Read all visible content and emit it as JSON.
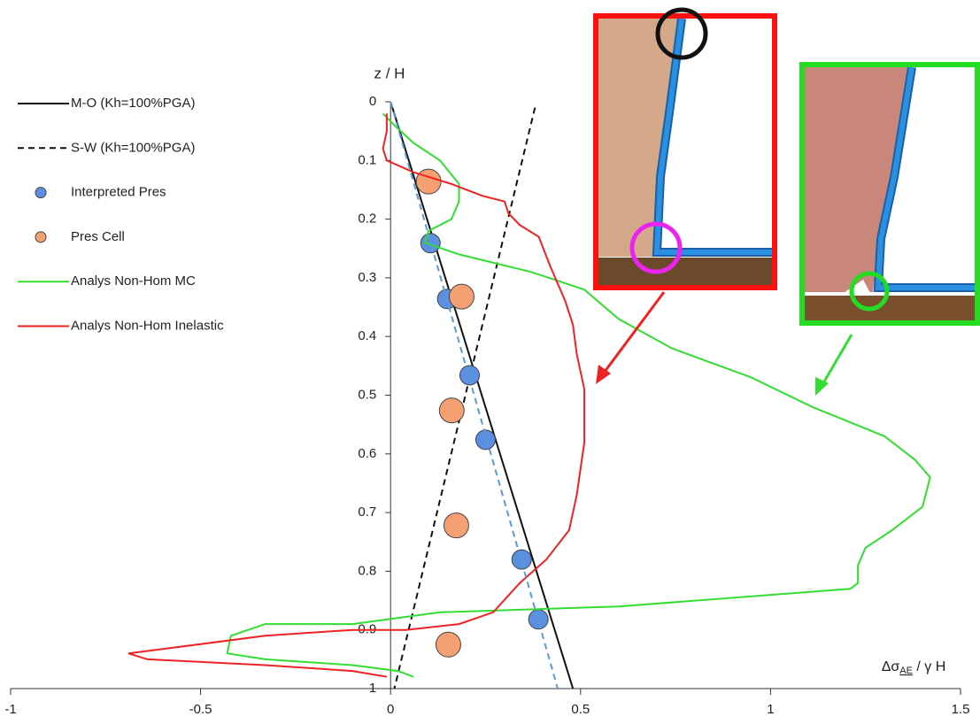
{
  "chart_data": {
    "type": "line",
    "ylabel": "z / H",
    "xlabel": {
      "main": "Δσ",
      "sub": "AE",
      "rest": " / γ H"
    },
    "xlim": [
      -1,
      1.5
    ],
    "xticks": [
      -1,
      -0.5,
      0,
      0.5,
      1,
      1.5
    ],
    "ylim": [
      0,
      1
    ],
    "y_inverted": true,
    "yticks": [
      0,
      0.1,
      0.2,
      0.3,
      0.4,
      0.5,
      0.6,
      0.7,
      0.8,
      0.9,
      1
    ],
    "series": [
      {
        "name": "M-O (Kh=100%PGA)",
        "color": "#111111",
        "mode": "line",
        "dashed": false,
        "x": [
          0,
          0.48
        ],
        "y": [
          0,
          1
        ]
      },
      {
        "name": "S-W (Kh=100%PGA)",
        "color": "#111111",
        "mode": "line",
        "dashed": true,
        "x": [
          0.38,
          0.01
        ],
        "y": [
          0.01,
          1
        ]
      },
      {
        "name": "Interpreted Pres",
        "color": "#5b8fe0",
        "mode": "markers",
        "x": [
          0.105,
          0.149,
          0.208,
          0.25,
          0.345,
          0.389
        ],
        "y": [
          0.241,
          0.336,
          0.466,
          0.576,
          0.78,
          0.882
        ]
      },
      {
        "name": "Pres Cell",
        "color": "#f4a072",
        "mode": "markers",
        "x": [
          0.1,
          0.187,
          0.161,
          0.173,
          0.152
        ],
        "y": [
          0.136,
          0.332,
          0.526,
          0.722,
          0.925
        ]
      },
      {
        "name": "Analys Non-Hom MC",
        "color": "#33dd33",
        "mode": "line",
        "dashed": false,
        "x": [
          -0.02,
          0.01,
          0.06,
          0.13,
          0.18,
          0.18,
          0.16,
          0.1,
          0.09,
          0.18,
          0.37,
          0.51,
          0.6,
          0.74,
          0.95,
          1.11,
          1.3,
          1.38,
          1.42,
          1.4,
          1.32,
          1.25,
          1.23,
          1.23,
          1.21,
          0.6,
          0.13,
          -0.1,
          -0.33,
          -0.42,
          -0.43,
          -0.33,
          -0.1,
          0.02,
          0.06
        ],
        "y": [
          0.02,
          0.04,
          0.07,
          0.1,
          0.14,
          0.17,
          0.2,
          0.22,
          0.24,
          0.26,
          0.29,
          0.32,
          0.37,
          0.42,
          0.47,
          0.52,
          0.57,
          0.61,
          0.64,
          0.69,
          0.73,
          0.76,
          0.79,
          0.82,
          0.83,
          0.86,
          0.87,
          0.89,
          0.89,
          0.91,
          0.94,
          0.95,
          0.96,
          0.97,
          0.98
        ]
      },
      {
        "name": "Analys Non-Hom Inelastic",
        "color": "#ee2222",
        "mode": "line",
        "dashed": false,
        "x": [
          -0.01,
          -0.01,
          -0.02,
          -0.01,
          0.06,
          0.16,
          0.24,
          0.3,
          0.31,
          0.34,
          0.39,
          0.42,
          0.46,
          0.48,
          0.49,
          0.51,
          0.51,
          0.49,
          0.47,
          0.41,
          0.34,
          0.27,
          0.18,
          0.04,
          -0.1,
          -0.33,
          -0.57,
          -0.69,
          -0.64,
          -0.33,
          -0.1,
          -0.01
        ],
        "y": [
          0.02,
          0.05,
          0.08,
          0.1,
          0.12,
          0.14,
          0.16,
          0.17,
          0.19,
          0.21,
          0.23,
          0.28,
          0.34,
          0.38,
          0.43,
          0.49,
          0.58,
          0.67,
          0.73,
          0.78,
          0.82,
          0.87,
          0.89,
          0.9,
          0.9,
          0.91,
          0.93,
          0.94,
          0.95,
          0.96,
          0.97,
          0.98
        ]
      },
      {
        "color": "#5b9bd5",
        "mode": "line",
        "dashed": true,
        "x": [
          0,
          0.44
        ],
        "y": [
          0,
          1
        ]
      }
    ]
  }
}
